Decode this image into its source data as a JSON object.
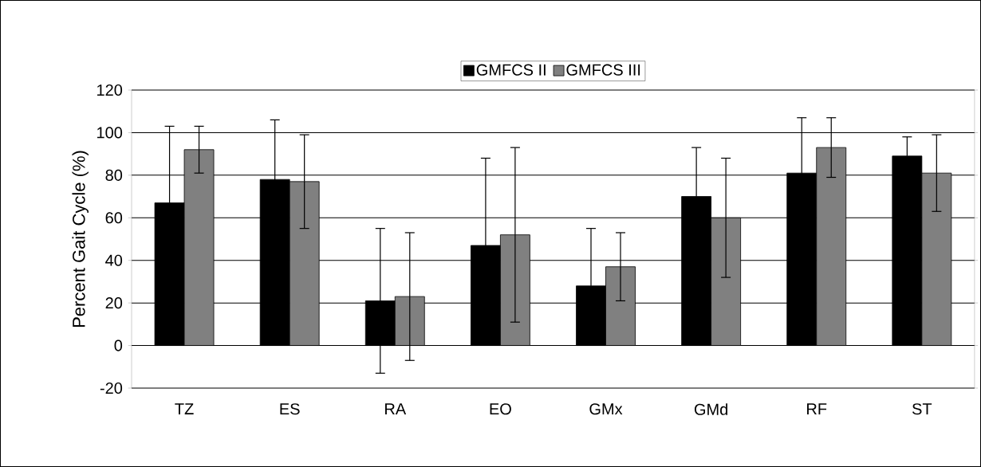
{
  "chart_data": {
    "type": "bar",
    "ylabel": "Percent Gait Cycle (%)",
    "categories": [
      "TZ",
      "ES",
      "RA",
      "EO",
      "GMx",
      "GMd",
      "RF",
      "ST"
    ],
    "series": [
      {
        "name": "GMFCS II",
        "color": "#000000",
        "values": [
          67,
          78,
          21,
          47,
          28,
          70,
          81,
          89
        ],
        "errors": [
          36,
          28,
          34,
          41,
          27,
          23,
          26,
          9
        ]
      },
      {
        "name": "GMFCS III",
        "color": "#808080",
        "values": [
          92,
          77,
          23,
          52,
          37,
          60,
          93,
          81
        ],
        "errors": [
          11,
          22,
          30,
          41,
          16,
          28,
          14,
          18
        ]
      }
    ],
    "ylim": [
      -20,
      120
    ],
    "yticks": [
      -20,
      0,
      20,
      40,
      60,
      80,
      100,
      120
    ],
    "grid": "y",
    "legend": "top"
  }
}
